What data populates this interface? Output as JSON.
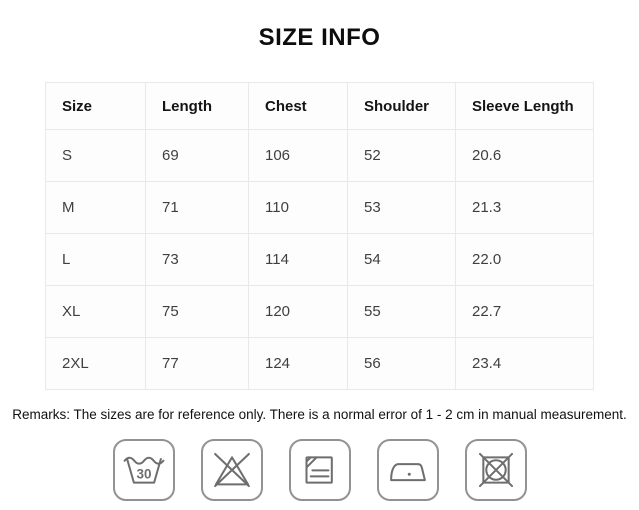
{
  "title": "SIZE INFO",
  "table": {
    "headers": [
      "Size",
      "Length",
      "Chest",
      "Shoulder",
      "Sleeve Length"
    ],
    "rows": [
      [
        "S",
        "69",
        "106",
        "52",
        "20.6"
      ],
      [
        "M",
        "71",
        "110",
        "53",
        "21.3"
      ],
      [
        "L",
        "73",
        "114",
        "54",
        "22.0"
      ],
      [
        "XL",
        "75",
        "120",
        "55",
        "22.7"
      ],
      [
        "2XL",
        "77",
        "124",
        "56",
        "23.4"
      ]
    ]
  },
  "remarks": "Remarks: The sizes are for reference only. There is a normal error of 1 - 2 cm in manual measurement.",
  "care": {
    "wash_temp": "30",
    "icons": [
      "wash-at-30",
      "do-not-bleach",
      "dry-flat-in-shade",
      "iron-low-heat",
      "do-not-tumble-dry"
    ]
  },
  "colors": {
    "border": "#e9e9e9",
    "header_text": "#141414",
    "cell_text": "#3f3f3f",
    "icon_stroke": "#6e6e6e",
    "icon_border": "#929292"
  }
}
